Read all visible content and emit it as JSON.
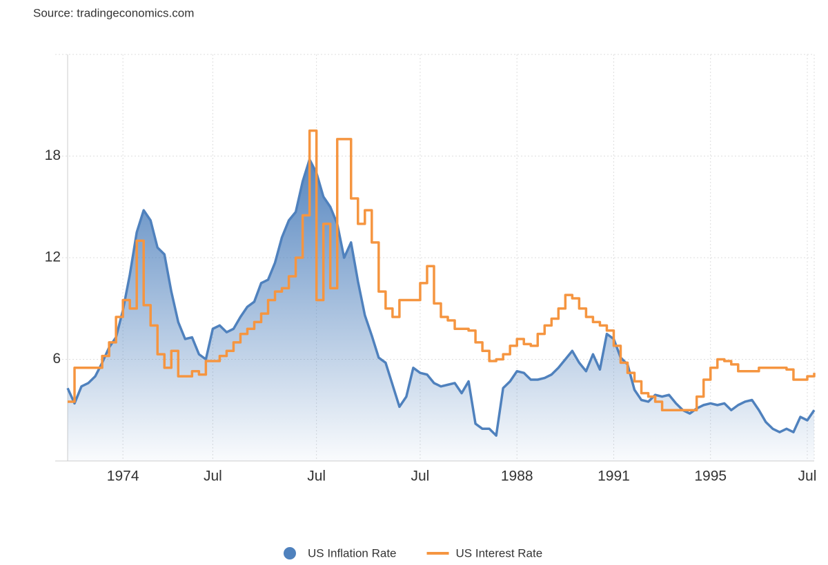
{
  "chart_data": {
    "type": "line",
    "source": "Source: tradingeconomics.com",
    "categories": [
      null,
      null,
      null,
      null,
      null,
      null,
      null,
      null,
      "1974",
      null,
      null,
      null,
      null,
      null,
      null,
      null,
      null,
      null,
      null,
      null,
      null,
      "Jul",
      null,
      null,
      null,
      null,
      null,
      null,
      null,
      null,
      null,
      null,
      null,
      null,
      null,
      null,
      "Jul",
      null,
      null,
      null,
      null,
      null,
      null,
      null,
      null,
      null,
      null,
      null,
      null,
      null,
      null,
      "Jul",
      null,
      null,
      null,
      null,
      null,
      null,
      null,
      null,
      null,
      null,
      null,
      null,
      null,
      "1988",
      null,
      null,
      null,
      null,
      null,
      null,
      null,
      null,
      null,
      null,
      null,
      null,
      null,
      "1991",
      null,
      null,
      null,
      null,
      null,
      null,
      null,
      null,
      null,
      null,
      null,
      null,
      null,
      "1995",
      null,
      null,
      null,
      null,
      null,
      null,
      null,
      null,
      null,
      null,
      null,
      null,
      null,
      "Jul",
      null
    ],
    "series": [
      {
        "name": "US Inflation Rate",
        "color": "#4f81bd",
        "fill": "area",
        "values": [
          4.3,
          3.4,
          4.4,
          4.6,
          5.0,
          5.8,
          6.7,
          7.3,
          8.9,
          11.0,
          13.5,
          14.8,
          14.2,
          12.6,
          12.2,
          10.0,
          8.2,
          7.2,
          7.3,
          6.3,
          6.0,
          7.8,
          8.0,
          7.6,
          7.8,
          8.5,
          9.1,
          9.4,
          10.5,
          10.7,
          11.7,
          13.2,
          14.2,
          14.7,
          16.5,
          17.8,
          17.0,
          15.6,
          15.0,
          14.0,
          12.0,
          12.9,
          10.6,
          8.6,
          7.4,
          6.1,
          5.8,
          4.5,
          3.2,
          3.8,
          5.5,
          5.2,
          5.1,
          4.6,
          4.4,
          4.5,
          4.6,
          4.0,
          4.7,
          2.2,
          1.9,
          1.9,
          1.5,
          4.3,
          4.7,
          5.3,
          5.2,
          4.8,
          4.8,
          4.9,
          5.1,
          5.5,
          6.0,
          6.5,
          5.8,
          5.3,
          6.3,
          5.4,
          7.5,
          7.2,
          6.1,
          5.7,
          4.2,
          3.6,
          3.5,
          3.9,
          3.8,
          3.9,
          3.4,
          3.0,
          2.8,
          3.1,
          3.3,
          3.4,
          3.3,
          3.4,
          3.0,
          3.3,
          3.5,
          3.6,
          3.0,
          2.3,
          1.9,
          1.7,
          1.9,
          1.7,
          2.6,
          2.4,
          3.0
        ]
      },
      {
        "name": "US Interest Rate",
        "color": "#f59540",
        "step": true,
        "values": [
          3.5,
          5.5,
          5.5,
          5.5,
          5.5,
          6.2,
          7.0,
          8.5,
          9.5,
          9.0,
          13.0,
          9.2,
          8.0,
          6.3,
          5.5,
          6.5,
          5.0,
          5.0,
          5.3,
          5.1,
          5.9,
          5.9,
          6.2,
          6.5,
          7.0,
          7.5,
          7.8,
          8.2,
          8.7,
          9.5,
          10.0,
          10.2,
          10.9,
          12.0,
          14.5,
          19.5,
          9.5,
          14.0,
          10.2,
          19.0,
          19.0,
          15.5,
          14.0,
          14.8,
          12.9,
          10.0,
          9.0,
          8.5,
          9.5,
          9.5,
          9.5,
          10.5,
          11.5,
          9.3,
          8.5,
          8.3,
          7.8,
          7.8,
          7.7,
          7.0,
          6.5,
          5.9,
          6.0,
          6.3,
          6.8,
          7.2,
          6.9,
          6.8,
          7.5,
          8.0,
          8.4,
          9.0,
          9.8,
          9.6,
          9.0,
          8.5,
          8.2,
          8.0,
          7.7,
          6.8,
          5.8,
          5.2,
          4.7,
          4.0,
          3.8,
          3.5,
          3.0,
          3.0,
          3.0,
          3.0,
          3.0,
          3.8,
          4.8,
          5.5,
          6.0,
          5.9,
          5.7,
          5.3,
          5.3,
          5.3,
          5.5,
          5.5,
          5.5,
          5.5,
          5.4,
          4.8,
          4.8,
          5.0,
          5.2
        ]
      }
    ],
    "ylim": [
      0,
      24
    ],
    "yticks": [
      6,
      12,
      18
    ],
    "grid": true,
    "legend": "bottom"
  }
}
